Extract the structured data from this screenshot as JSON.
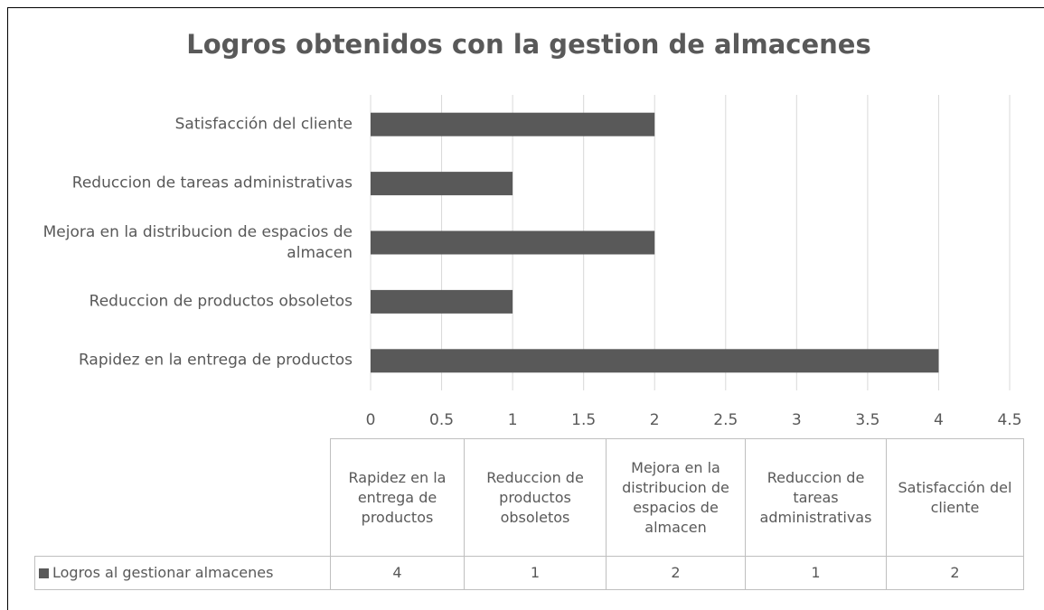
{
  "chart_data": {
    "type": "bar",
    "orientation": "horizontal",
    "title": "Logros obtenidos con la gestion de almacenes",
    "categories": [
      "Rapidez en la entrega de productos",
      "Reduccion de productos obsoletos",
      "Mejora en la distribucion de espacios de almacen",
      "Reduccion de tareas administrativas",
      "Satisfacción del cliente"
    ],
    "series": [
      {
        "name": "Logros al gestionar almacenes",
        "color": "#595959",
        "values": [
          4,
          1,
          2,
          1,
          2
        ]
      }
    ],
    "xlim": [
      0,
      4.5
    ],
    "xticks": [
      0,
      0.5,
      1,
      1.5,
      2,
      2.5,
      3,
      3.5,
      4,
      4.5
    ],
    "grid": true,
    "data_table": true
  }
}
